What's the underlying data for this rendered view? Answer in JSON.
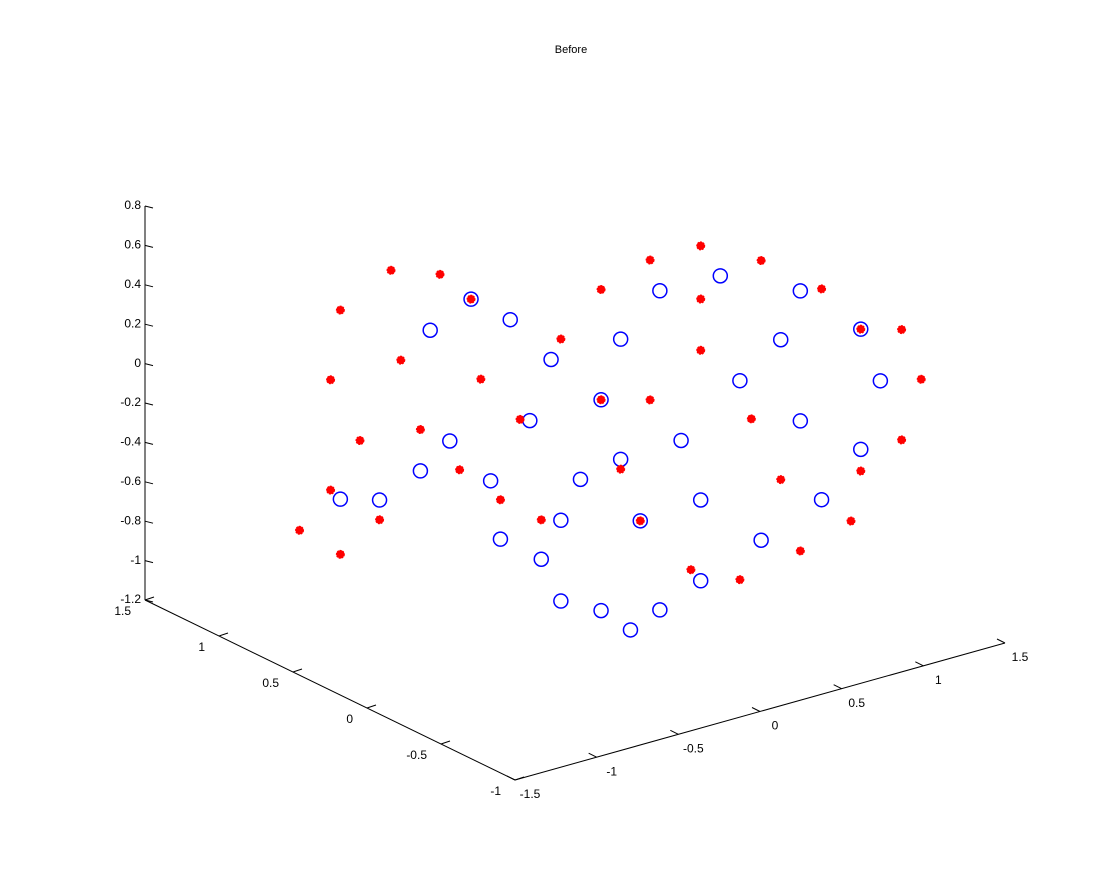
{
  "chart_data": {
    "type": "scatter3d",
    "title": "Before",
    "xlim": [
      -1.5,
      1.5
    ],
    "ylim": [
      -1,
      1.5
    ],
    "zlim": [
      -1.2,
      0.8
    ],
    "xticks": [
      -1.5,
      -1,
      -0.5,
      0,
      0.5,
      1,
      1.5
    ],
    "yticks": [
      -1,
      -0.5,
      0,
      0.5,
      1,
      1.5
    ],
    "zticks": [
      -1.2,
      -1,
      -0.8,
      -0.6,
      -0.4,
      -0.2,
      0,
      0.2,
      0.4,
      0.6,
      0.8
    ],
    "series": [
      {
        "color": "#0000ff",
        "marker": "circle",
        "x": [
          -1.21,
          -0.97,
          -0.72,
          -0.66,
          -0.41,
          -0.17,
          0.08,
          -0.05,
          -0.29,
          -0.23,
          0.02,
          0.14,
          0.26,
          0.14,
          -0.54,
          -0.52,
          -0.34,
          -0.16,
          0.09,
          0.46,
          0.83,
          1.07,
          1.19,
          1.07,
          0.7,
          0.21,
          -0.16,
          -0.4,
          -0.52,
          -0.4,
          -0.03,
          0.33,
          0.7,
          -0.28,
          0.09,
          0.58
        ],
        "y": [
          0.5,
          0.5,
          0.5,
          0.5,
          0.5,
          0.5,
          0.5,
          0.5,
          0.5,
          0.5,
          0.5,
          0.5,
          0.5,
          0.5,
          0.5,
          -0.5,
          -0.5,
          -0.5,
          -0.5,
          -0.5,
          -0.5,
          -0.5,
          -0.5,
          -0.5,
          -0.5,
          -0.5,
          -0.5,
          -0.5,
          -0.5,
          -0.5,
          -0.5,
          -0.5,
          -0.5,
          -0.5,
          -0.5,
          -0.5
        ],
        "z": [
          -0.39,
          -0.45,
          -0.36,
          0.34,
          0.44,
          0.28,
          0.02,
          -0.26,
          -0.51,
          -0.82,
          -0.98,
          -1.22,
          -0.63,
          -0.81,
          -0.25,
          -0.75,
          -0.89,
          -0.83,
          -0.74,
          -0.62,
          -0.5,
          -0.3,
          0.02,
          0.31,
          0.59,
          0.78,
          0.79,
          0.6,
          0.32,
          -0.01,
          0.0,
          0.22,
          -0.07,
          -0.35,
          -0.33,
          0.37
        ]
      },
      {
        "color": "#ff0000",
        "marker": "dot",
        "x": [
          -1.46,
          -1.21,
          -0.97,
          -1.27,
          -1.09,
          -1.27,
          -1.21,
          -0.9,
          -0.6,
          -0.41,
          -0.84,
          -0.72,
          -0.48,
          -0.23,
          0.02,
          0.14,
          -0.11,
          -0.35,
          -0.52,
          -0.22,
          0.09,
          0.46,
          0.83,
          1.07,
          1.32,
          1.44,
          1.32,
          1.07,
          1.01,
          0.7,
          0.33,
          0.03,
          -0.28,
          -0.4,
          -0.22,
          0.09,
          0.4,
          0.58,
          -0.52,
          0.09
        ],
        "y": [
          0.5,
          0.5,
          0.5,
          0.5,
          0.5,
          0.5,
          0.5,
          0.5,
          0.5,
          0.5,
          0.5,
          0.5,
          0.5,
          0.5,
          0.5,
          0.5,
          0.5,
          0.5,
          -0.5,
          -0.5,
          -0.5,
          -0.5,
          -0.5,
          -0.5,
          -0.5,
          -0.5,
          -0.5,
          -0.5,
          -0.5,
          -0.5,
          -0.5,
          -0.5,
          -0.5,
          -0.5,
          -0.5,
          -0.5,
          -0.5,
          -0.5,
          -0.5,
          -0.5
        ],
        "z": [
          -0.49,
          -0.67,
          -0.55,
          -0.33,
          -0.12,
          0.23,
          0.57,
          0.7,
          0.61,
          0.44,
          0.23,
          -0.15,
          -0.41,
          -0.62,
          -0.78,
          0.11,
          -0.24,
          0.02,
          0.88,
          0.96,
          0.96,
          0.8,
          0.57,
          0.31,
          0.25,
          -0.03,
          -0.31,
          -0.41,
          -0.65,
          -0.73,
          -0.79,
          -0.67,
          -0.35,
          -0.06,
          0.25,
          0.43,
          0.01,
          -0.34,
          0.32,
          0.69
        ]
      }
    ]
  }
}
